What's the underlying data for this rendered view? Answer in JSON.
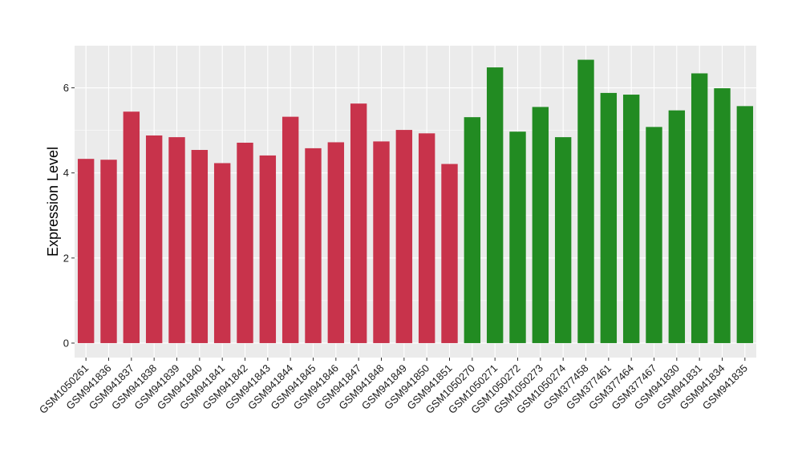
{
  "chart_data": {
    "type": "bar",
    "title": "",
    "xlabel": "",
    "ylabel": "Expression Level",
    "ylim": [
      0,
      7
    ],
    "yticks": [
      0,
      2,
      4,
      6
    ],
    "grid": true,
    "legend": "none",
    "colors": {
      "group_1": "#c8334b",
      "group_2": "#228b22",
      "panel_bg": "#ebebeb",
      "grid": "#ffffff"
    },
    "categories": [
      "GSM1050261",
      "GSM941836",
      "GSM941837",
      "GSM941838",
      "GSM941839",
      "GSM941840",
      "GSM941841",
      "GSM941842",
      "GSM941843",
      "GSM941844",
      "GSM941845",
      "GSM941846",
      "GSM941847",
      "GSM941848",
      "GSM941849",
      "GSM941850",
      "GSM941851",
      "GSM1050270",
      "GSM1050271",
      "GSM1050272",
      "GSM1050273",
      "GSM1050274",
      "GSM377458",
      "GSM377461",
      "GSM377464",
      "GSM377467",
      "GSM941830",
      "GSM941831",
      "GSM941834",
      "GSM941835"
    ],
    "values": [
      4.33,
      4.31,
      5.44,
      4.88,
      4.84,
      4.54,
      4.23,
      4.71,
      4.41,
      5.32,
      4.58,
      4.72,
      5.63,
      4.74,
      5.01,
      4.93,
      4.21,
      5.31,
      6.48,
      4.97,
      5.55,
      4.84,
      6.66,
      5.88,
      5.84,
      5.08,
      5.47,
      6.34,
      5.99,
      5.57
    ],
    "groups": [
      1,
      1,
      1,
      1,
      1,
      1,
      1,
      1,
      1,
      1,
      1,
      1,
      1,
      1,
      1,
      1,
      1,
      2,
      2,
      2,
      2,
      2,
      2,
      2,
      2,
      2,
      2,
      2,
      2,
      2
    ]
  }
}
